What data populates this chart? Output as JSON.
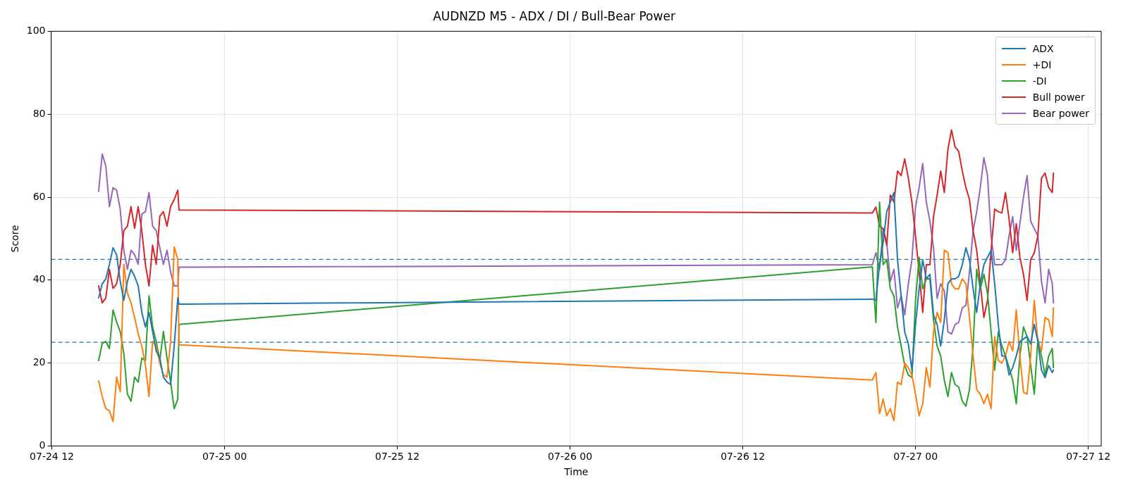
{
  "chart_data": {
    "type": "line",
    "title": "AUDNZD M5 - ADX / DI / Bull-Bear Power",
    "xlabel": "Time",
    "ylabel": "Score",
    "x": [
      "--07-24T15:15",
      "--07-24T15:30",
      "--07-24T15:45",
      "--07-24T16:00",
      "--07-24T16:15",
      "--07-24T16:30",
      "--07-24T16:45",
      "--07-24T17:00",
      "--07-24T17:15",
      "--07-24T17:30",
      "--07-24T17:45",
      "--07-24T18:00",
      "--07-24T18:15",
      "--07-24T18:30",
      "--07-24T18:45",
      "--07-24T19:00",
      "--07-24T19:15",
      "--07-24T19:30",
      "--07-24T19:45",
      "--07-24T20:00",
      "--07-24T20:15",
      "--07-24T20:30",
      "--07-24T20:45",
      "--07-24T20:50",
      "--07-26T21:00",
      "--07-26T21:15",
      "--07-26T21:30",
      "--07-26T21:45",
      "--07-26T22:00",
      "--07-26T22:15",
      "--07-26T22:30",
      "--07-26T22:45",
      "--07-26T23:00",
      "--07-26T23:15",
      "--07-26T23:30",
      "--07-26T23:45",
      "--07-27T00:00",
      "--07-27T00:15",
      "--07-27T00:30",
      "--07-27T00:45",
      "--07-27T01:00",
      "--07-27T01:15",
      "--07-27T01:30",
      "--07-27T01:45",
      "--07-27T02:00",
      "--07-27T02:15",
      "--07-27T02:30",
      "--07-27T02:45",
      "--07-27T03:00",
      "--07-27T03:15",
      "--07-27T03:30",
      "--07-27T03:45",
      "--07-27T04:00",
      "--07-27T04:15",
      "--07-27T04:30",
      "--07-27T04:45",
      "--07-27T05:00",
      "--07-27T05:15",
      "--07-27T05:30",
      "--07-27T05:45",
      "--07-27T06:00",
      "--07-27T06:15",
      "--07-27T06:30",
      "--07-27T06:45",
      "--07-27T07:00",
      "--07-27T07:15",
      "--07-27T07:30",
      "--07-27T07:45",
      "--07-27T08:00",
      "--07-27T08:15",
      "--07-27T08:30",
      "--07-27T08:45",
      "--07-27T09:00",
      "--07-27T09:15",
      "--07-27T09:30",
      "--07-27T09:35"
    ],
    "series": [
      {
        "name": "ADX",
        "color": "#1f77b4",
        "values": [
          35.7,
          39.1,
          40.3,
          43.8,
          47.8,
          46.1,
          39.7,
          35.1,
          39.7,
          42.6,
          40.9,
          38.6,
          32.2,
          28.7,
          32.2,
          27.6,
          22.9,
          21.2,
          16.6,
          15.4,
          14.8,
          24.1,
          35.7,
          34.2,
          35.4,
          35.1,
          43.7,
          49,
          56.5,
          58.8,
          61.1,
          44.9,
          36.2,
          27.5,
          24.6,
          18.3,
          29.3,
          37.9,
          44.9,
          40.3,
          41.4,
          31.6,
          29.3,
          24.1,
          30.4,
          39.1,
          40.3,
          40.3,
          40.9,
          43.7,
          47.8,
          44.9,
          37.9,
          32.2,
          39.1,
          43.7,
          45.5,
          47.2,
          39.1,
          29.3,
          21.7,
          21.7,
          17.1,
          18.9,
          21.7,
          25.2,
          25.8,
          26.4,
          24.6,
          29.3,
          25.2,
          18.3,
          16.5,
          19.4,
          17.7,
          18.3
        ]
      },
      {
        "name": "+DI",
        "color": "#ff7f0e",
        "values": [
          15.7,
          11.9,
          9,
          8.5,
          5.9,
          16.6,
          13.1,
          43.8,
          36.8,
          34.5,
          31,
          27,
          24.1,
          19.5,
          11.9,
          25.2,
          24.1,
          20,
          17.1,
          16.6,
          25.2,
          48,
          45,
          24.4,
          15.9,
          17.7,
          7.8,
          11.3,
          7.3,
          9,
          6.1,
          15.4,
          14.8,
          20,
          18.9,
          17.1,
          12.5,
          7.3,
          10.2,
          18.9,
          14.2,
          27.5,
          32.2,
          29.8,
          47.2,
          46.6,
          39.1,
          37.9,
          37.9,
          40.3,
          39.1,
          31,
          21.7,
          13.6,
          12.5,
          10.2,
          12.5,
          9,
          26.4,
          20.6,
          20,
          21.7,
          25.2,
          22.9,
          32.8,
          21.7,
          13,
          12.5,
          21.7,
          35.1,
          25.2,
          22.9,
          31,
          30.4,
          26.4,
          33.3
        ]
      },
      {
        "name": "-DI",
        "color": "#2ca02c",
        "values": [
          20.6,
          24.7,
          25.2,
          23.5,
          32.8,
          29.9,
          27.6,
          22.3,
          12.5,
          10.8,
          16.6,
          15.4,
          21.2,
          20.6,
          36.2,
          28.7,
          25.2,
          20.6,
          27.6,
          21.2,
          15.4,
          9,
          11.3,
          29.3,
          43.2,
          29.8,
          58.8,
          43.7,
          44.9,
          37.9,
          36.2,
          28.7,
          24.1,
          19.4,
          17.1,
          16.5,
          35.1,
          45.5,
          37.9,
          40.3,
          40.3,
          30.4,
          24.1,
          21.7,
          15.9,
          11.9,
          17.7,
          14.8,
          14.2,
          10.8,
          9.6,
          13.6,
          24.1,
          42.6,
          37.9,
          41.4,
          36.8,
          27.5,
          18.3,
          27.5,
          24.1,
          21.7,
          18.9,
          15.9,
          10.2,
          21.7,
          28.7,
          26.4,
          19.4,
          12.5,
          25.8,
          21.7,
          17.1,
          21.7,
          23.5,
          18.9
        ]
      },
      {
        "name": "Bull power",
        "color": "#d62728",
        "values": [
          38.6,
          34.5,
          35.7,
          42.6,
          38,
          39.1,
          43.8,
          51.9,
          53,
          57.7,
          52.5,
          57.7,
          51.9,
          43.8,
          38.6,
          48.4,
          43.8,
          55.4,
          56.5,
          53,
          57.7,
          59.4,
          61.7,
          56.9,
          56.2,
          57.6,
          53,
          52.4,
          48.4,
          60.5,
          58.8,
          66.3,
          65.2,
          69.2,
          64.6,
          58.8,
          50.7,
          42,
          32.2,
          43.7,
          43.7,
          55.3,
          60.5,
          66.3,
          61.1,
          71.5,
          76.2,
          72.1,
          71,
          66.3,
          62.3,
          59.4,
          51.9,
          47.2,
          39.1,
          31,
          35.1,
          47.2,
          57.1,
          56.5,
          56.2,
          61.1,
          54.7,
          46.6,
          53.6,
          45.5,
          41.4,
          35.1,
          44.9,
          46.6,
          50.7,
          64.6,
          65.8,
          62.3,
          61.1,
          65.8
        ]
      },
      {
        "name": "Bear power",
        "color": "#9467bd",
        "values": [
          61.4,
          70.4,
          67.5,
          57.7,
          62.3,
          61.7,
          57.1,
          47.2,
          42.6,
          47.2,
          46.1,
          43.8,
          55.9,
          56.5,
          61.1,
          53,
          51.9,
          47.8,
          43.8,
          47.2,
          42,
          38.6,
          38.6,
          43.1,
          43.7,
          46.6,
          42.6,
          52.4,
          49,
          39.7,
          42.6,
          33.3,
          36.2,
          31.6,
          39.1,
          44.9,
          57.6,
          62.3,
          68.1,
          58.8,
          54.2,
          47.8,
          35.6,
          39.1,
          37.4,
          27.5,
          27,
          29.3,
          29.8,
          33.3,
          33.9,
          42,
          51.9,
          56.5,
          62.3,
          69.5,
          65.2,
          50.7,
          43.7,
          43.7,
          43.7,
          44.9,
          50.7,
          55.3,
          47.2,
          53.6,
          60,
          65.2,
          54.2,
          52.4,
          50.7,
          39.7,
          34.5,
          42.6,
          39.1,
          34.5
        ]
      }
    ],
    "xlim": [
      "--07-24T11:57",
      "--07-27T12:54"
    ],
    "xticks": [
      {
        "value": "--07-24T12:00",
        "label": "07-24 12"
      },
      {
        "value": "--07-25T00:00",
        "label": "07-25 00"
      },
      {
        "value": "--07-25T12:00",
        "label": "07-25 12"
      },
      {
        "value": "--07-26T00:00",
        "label": "07-26 00"
      },
      {
        "value": "--07-26T12:00",
        "label": "07-26 12"
      },
      {
        "value": "--07-27T00:00",
        "label": "07-27 00"
      },
      {
        "value": "--07-27T12:00",
        "label": "07-27 12"
      }
    ],
    "ylim": [
      0,
      100
    ],
    "yticks": [
      0,
      20,
      40,
      60,
      80,
      100
    ],
    "ref_lines": [
      {
        "axis": "y",
        "value": 45,
        "color": "#1f77b4",
        "line_style": "dashed"
      },
      {
        "axis": "y",
        "value": 25,
        "color": "#1f77b4",
        "line_style": "dashed"
      }
    ],
    "grid": true,
    "legend": "top right",
    "marker": "none",
    "line_style": "solid"
  }
}
